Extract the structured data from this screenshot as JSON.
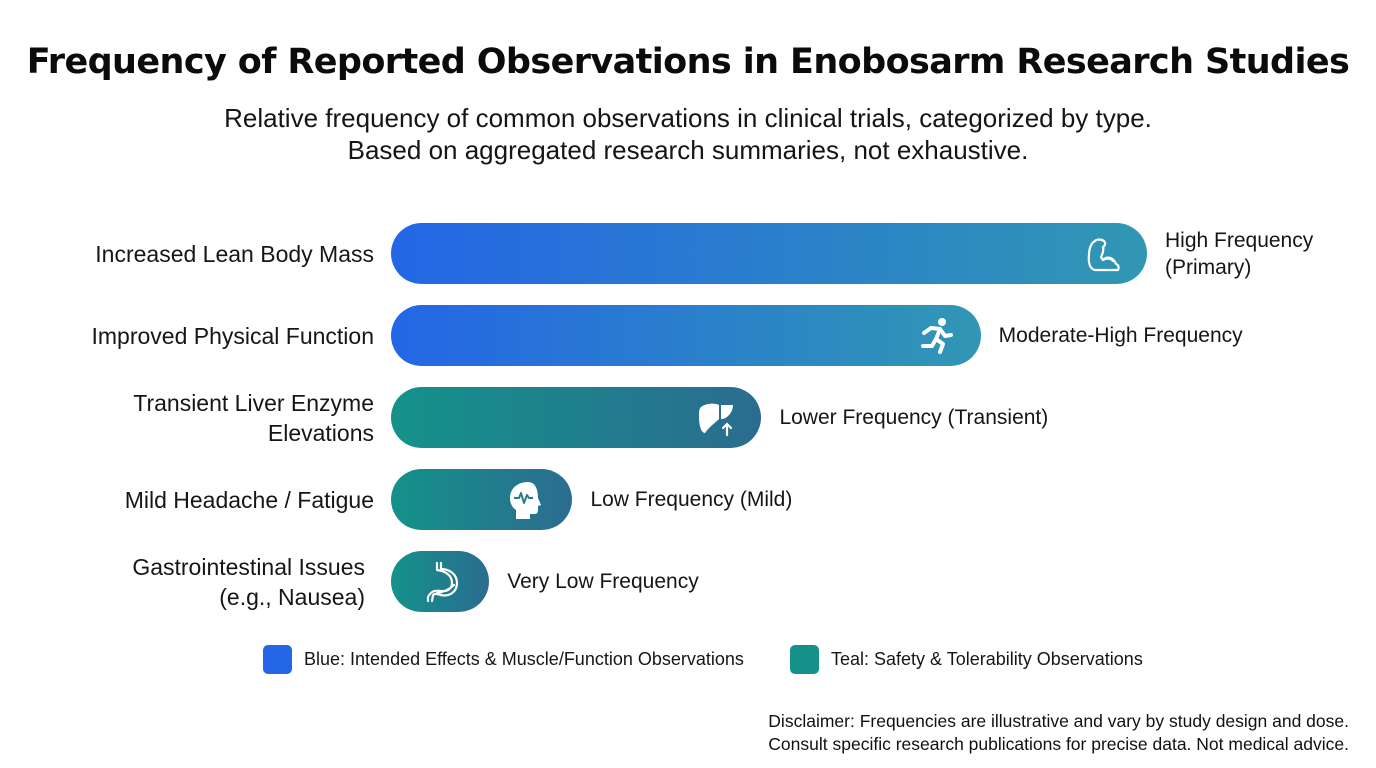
{
  "colors": {
    "blue_start": "#2466e6",
    "blue_end": "#3197b3",
    "teal_start": "#14928a",
    "teal_end": "#2b6c90",
    "legend_blue": "#2566e8",
    "legend_teal": "#13918a"
  },
  "chart_data": {
    "type": "bar",
    "orientation": "horizontal",
    "title": "Frequency of Reported Observations in Enobosarm Research Studies",
    "subtitle": [
      "Relative frequency of common observations in clinical trials, categorized by type.",
      "Based on aggregated research summaries, not exhaustive."
    ],
    "xlabel": "",
    "ylabel": "",
    "xlim": [
      0,
      100
    ],
    "grid": false,
    "categories": [
      "Increased Lean Body Mass",
      "Improved Physical Function",
      "Transient Liver Enzyme\nElevations",
      "Mild Headache / Fatigue",
      "Gastrointestinal Issues\n(e.g., Nausea)"
    ],
    "values": [
      100,
      78,
      49,
      24,
      13
    ],
    "value_labels": [
      "High Frequency\n(Primary)",
      "Moderate-High Frequency",
      "Lower Frequency (Transient)",
      "Low Frequency (Mild)",
      "Very Low Frequency"
    ],
    "series_type": [
      "blue",
      "blue",
      "teal",
      "teal",
      "teal"
    ],
    "icons": [
      "flexed-arm-icon",
      "running-person-icon",
      "liver-arrow-up-icon",
      "head-pulse-icon",
      "stomach-icon"
    ],
    "legend": {
      "placement": "bottom",
      "entries": [
        {
          "key": "blue",
          "label": "Blue: Intended Effects & Muscle/Function Observations"
        },
        {
          "key": "teal",
          "label": "Teal: Safety & Tolerability Observations"
        }
      ]
    },
    "annotations": [
      "Disclaimer: Frequencies are illustrative and vary by study design and dose.\nConsult specific research publications for precise data. Not medical advice."
    ]
  }
}
